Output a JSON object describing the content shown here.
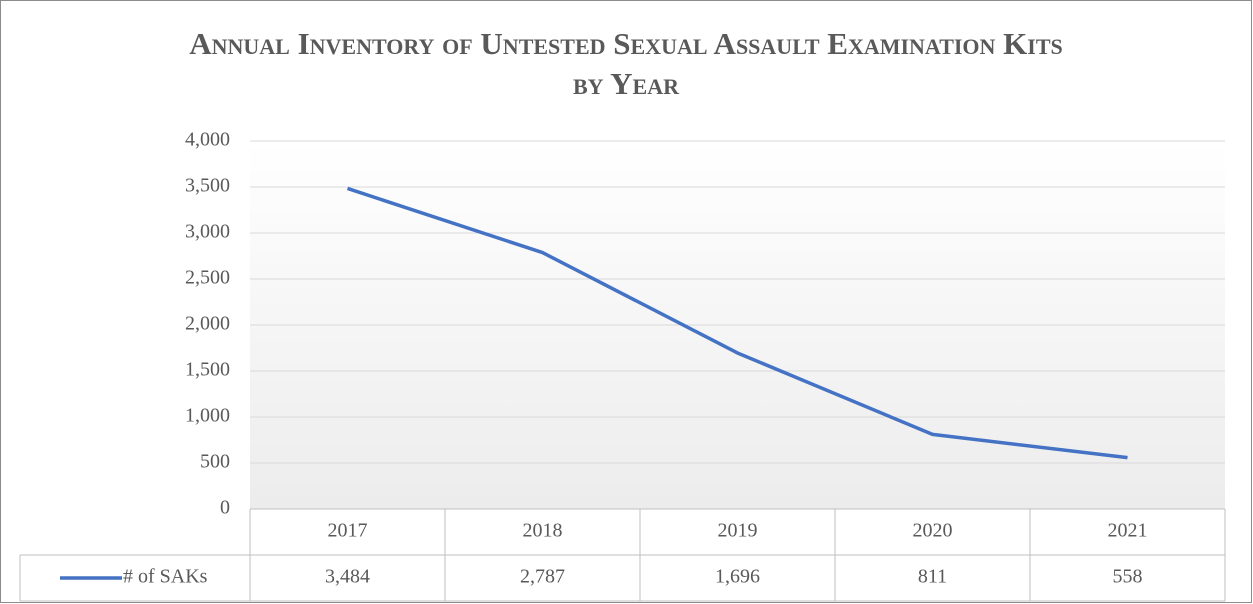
{
  "chart_data": {
    "type": "line",
    "title": "Annual Inventory of Untested Sexual Assault Examination Kits by Year",
    "categories": [
      "2017",
      "2018",
      "2019",
      "2020",
      "2021"
    ],
    "series": [
      {
        "name": "# of SAKs",
        "color": "#4472c4",
        "values": [
          3484,
          2787,
          1696,
          811,
          558
        ],
        "value_labels": [
          "3,484",
          "2,787",
          "1,696",
          "811",
          "558"
        ]
      }
    ],
    "ylim": [
      0,
      4000
    ],
    "yticks": [
      0,
      500,
      {
        "value": 1000,
        "label": "1,000"
      },
      {
        "value": 1500,
        "label": "1,500"
      },
      {
        "value": 2000,
        "label": "2,000"
      },
      {
        "value": 2500,
        "label": "2,500"
      },
      {
        "value": 3000,
        "label": "3,000"
      },
      {
        "value": 3500,
        "label": "3,500"
      },
      {
        "value": 4000,
        "label": "4,000"
      }
    ],
    "grid": true
  }
}
